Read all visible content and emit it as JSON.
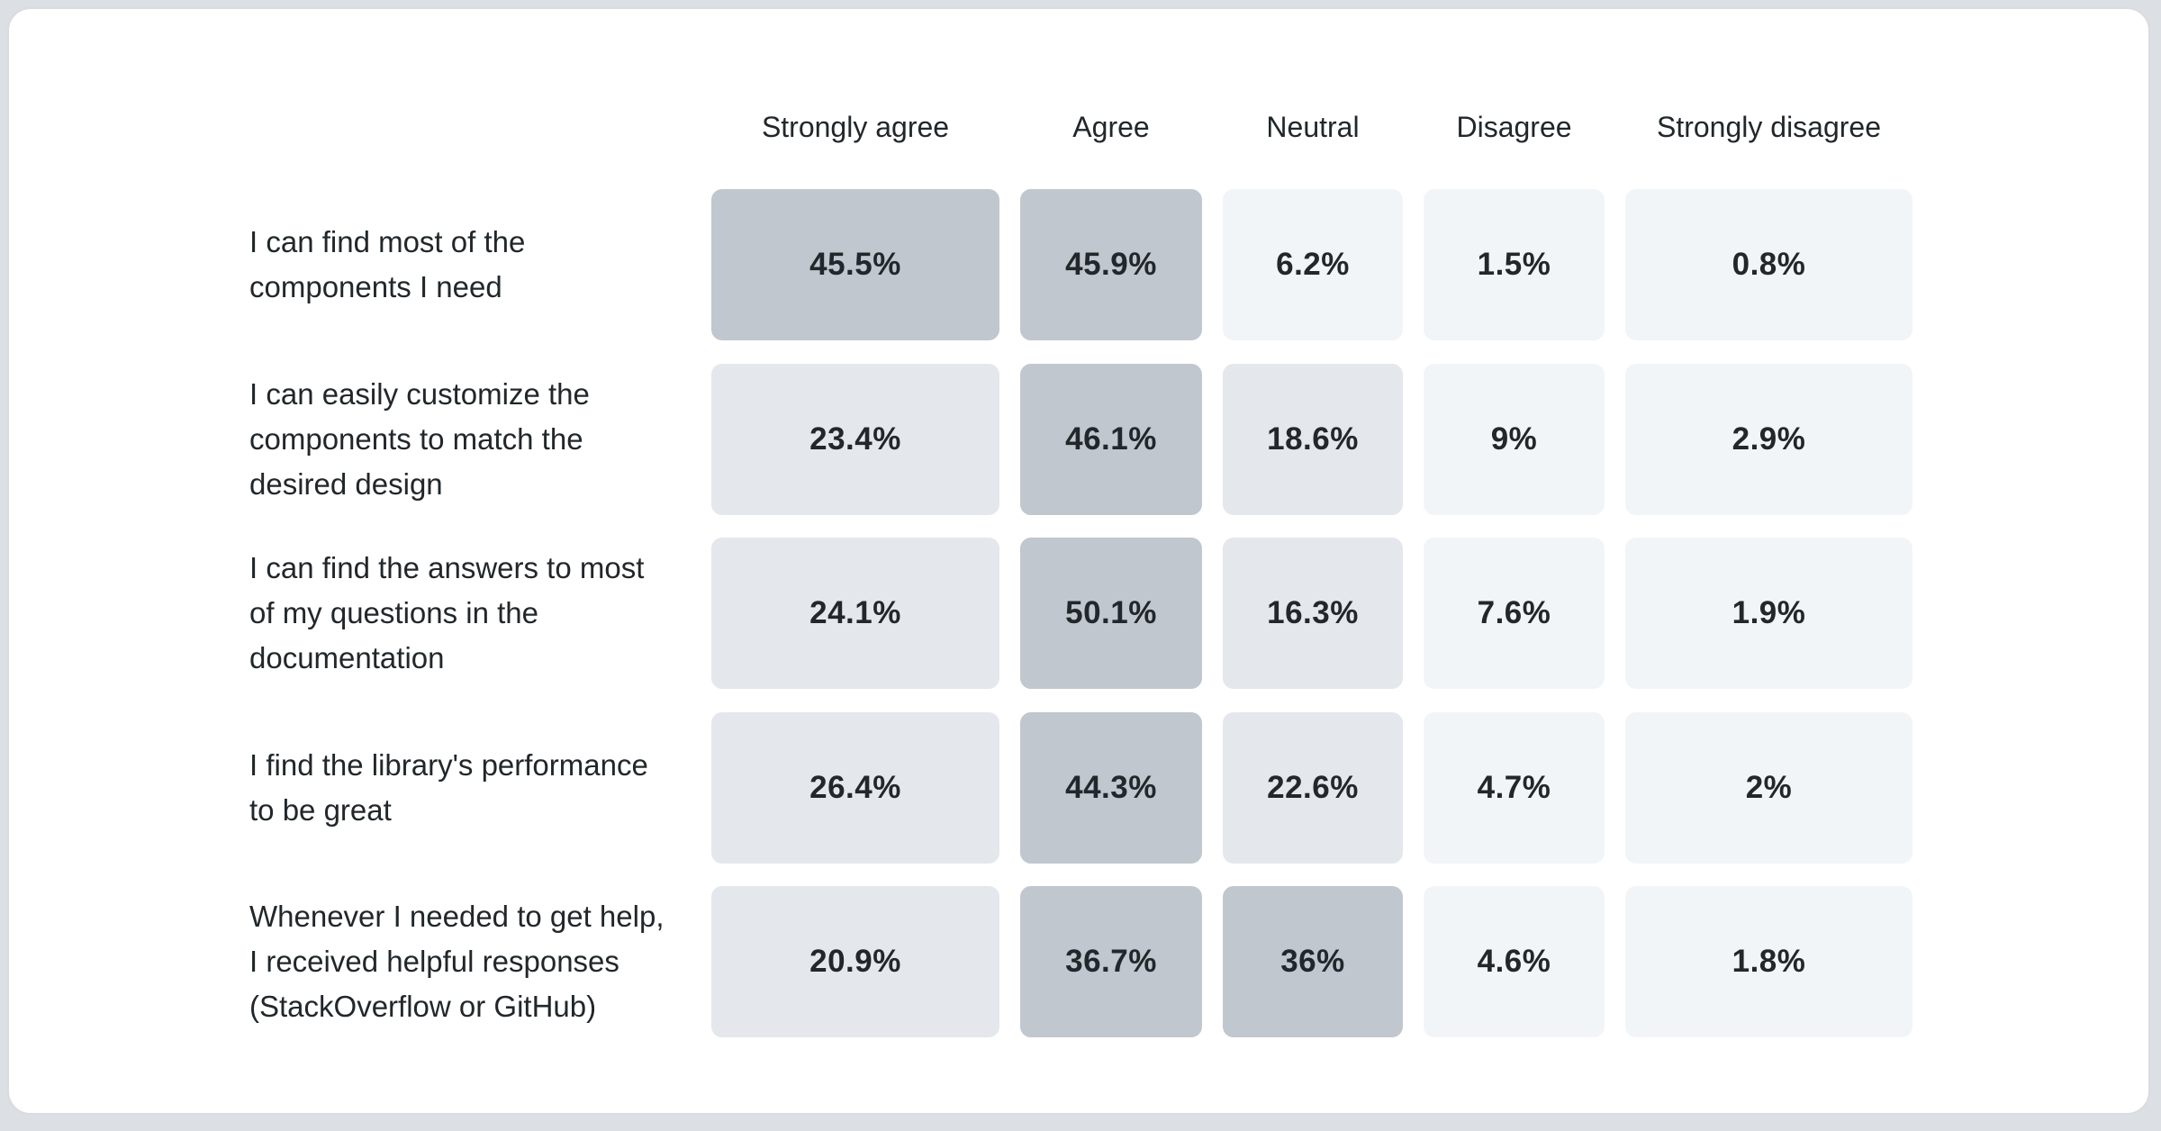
{
  "page": {
    "background_color": "#dcdfe3",
    "card_background": "#ffffff",
    "card_border_color": "#d8dce0"
  },
  "chart_data": {
    "type": "heatmap",
    "title": "",
    "xlabel": "",
    "ylabel": "",
    "legend_position": "none",
    "value_format": "percent",
    "text_color": "#21272a",
    "columns": [
      "Strongly agree",
      "Agree",
      "Neutral",
      "Disagree",
      "Strongly disagree"
    ],
    "rows": [
      {
        "label": "I can find most of the components I need",
        "label_display": "I can find most of the\ncomponents I need",
        "values": [
          45.5,
          45.9,
          6.2,
          1.5,
          0.8
        ],
        "cell_labels": [
          "45.5%",
          "45.9%",
          "6.2%",
          "1.5%",
          "0.8%"
        ]
      },
      {
        "label": "I can easily customize the components to match the desired design",
        "label_display": "I can easily customize the\ncomponents to match the\ndesired design",
        "values": [
          23.4,
          46.1,
          18.6,
          9,
          2.9
        ],
        "cell_labels": [
          "23.4%",
          "46.1%",
          "18.6%",
          "9%",
          "2.9%"
        ]
      },
      {
        "label": "I can find the answers to most of my questions in the documentation",
        "label_display": "I can find the answers to most\nof my questions in the\ndocumentation",
        "values": [
          24.1,
          50.1,
          16.3,
          7.6,
          1.9
        ],
        "cell_labels": [
          "24.1%",
          "50.1%",
          "16.3%",
          "7.6%",
          "1.9%"
        ]
      },
      {
        "label": "I find the library's performance to be great",
        "label_display": "I find the library's performance\nto be great",
        "values": [
          26.4,
          44.3,
          22.6,
          4.7,
          2
        ],
        "cell_labels": [
          "26.4%",
          "44.3%",
          "22.6%",
          "4.7%",
          "2%"
        ]
      },
      {
        "label": "Whenever I needed to get help, I received helpful responses (StackOverflow or GitHub)",
        "label_display": "Whenever I needed to get help,\nI received helpful responses\n(StackOverflow or GitHub)",
        "values": [
          20.9,
          36.7,
          36,
          4.6,
          1.8
        ],
        "cell_labels": [
          "20.9%",
          "36.7%",
          "36%",
          "4.6%",
          "1.8%"
        ]
      }
    ],
    "color_scale": {
      "high_min": 30,
      "mid_min": 12,
      "high": "#c1c7ce",
      "mid": "#e4e7eb",
      "low": "#f2f5f8"
    }
  }
}
